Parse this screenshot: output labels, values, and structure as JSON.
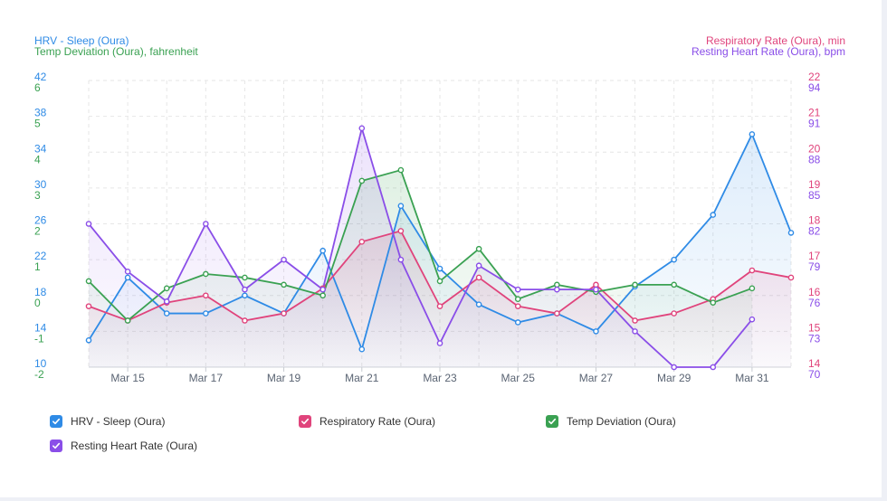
{
  "axes": {
    "left_titles": [
      {
        "text": "HRV - Sleep (Oura)",
        "color": "#2f8be6"
      },
      {
        "text": "Temp Deviation (Oura), fahrenheit",
        "color": "#3aa152"
      }
    ],
    "right_titles": [
      {
        "text": "Respiratory Rate (Oura), min",
        "color": "#e0447c"
      },
      {
        "text": "Resting Heart Rate (Oura), bpm",
        "color": "#8a4ee8"
      }
    ],
    "hrv_ticks": [
      "42",
      "38",
      "34",
      "30",
      "26",
      "22",
      "18",
      "14",
      "10"
    ],
    "temp_ticks": [
      "6",
      "5",
      "4",
      "3",
      "2",
      "1",
      "0",
      "-1",
      "-2"
    ],
    "resp_ticks": [
      "22",
      "21",
      "20",
      "19",
      "18",
      "17",
      "16",
      "15",
      "14"
    ],
    "rhr_ticks": [
      "94",
      "91",
      "88",
      "85",
      "82",
      "79",
      "76",
      "73",
      "70"
    ]
  },
  "chart_data": {
    "type": "line",
    "x": [
      "Mar 14",
      "Mar 15",
      "Mar 16",
      "Mar 17",
      "Mar 18",
      "Mar 19",
      "Mar 20",
      "Mar 21",
      "Mar 22",
      "Mar 23",
      "Mar 24",
      "Mar 25",
      "Mar 26",
      "Mar 27",
      "Mar 28",
      "Mar 29",
      "Mar 30",
      "Mar 31",
      "Apr 1"
    ],
    "x_tick_labels": [
      "Mar 15",
      "Mar 17",
      "Mar 19",
      "Mar 21",
      "Mar 23",
      "Mar 25",
      "Mar 27",
      "Mar 29",
      "Mar 31"
    ],
    "grid": true,
    "legend_placement": "bottom",
    "series": [
      {
        "name": "HRV - Sleep (Oura)",
        "axis": "hrv",
        "color": "#2f8be6",
        "ylim": [
          10,
          42
        ],
        "fill": true,
        "values": [
          13,
          20,
          16,
          16,
          18,
          16,
          23,
          12,
          28,
          21,
          17,
          15,
          16,
          14,
          19,
          22,
          27,
          36,
          25
        ]
      },
      {
        "name": "Respiratory Rate (Oura)",
        "axis": "resp",
        "color": "#e0447c",
        "ylim": [
          14,
          22
        ],
        "fill": true,
        "values": [
          15.7,
          15.3,
          15.8,
          16.0,
          15.3,
          15.5,
          16.2,
          17.5,
          17.8,
          15.7,
          16.5,
          15.7,
          15.5,
          16.3,
          15.3,
          15.5,
          15.9,
          16.7,
          16.5
        ]
      },
      {
        "name": "Temp Deviation (Oura)",
        "axis": "temp",
        "color": "#3aa152",
        "ylim": [
          -2,
          6
        ],
        "fill": true,
        "values": [
          0.4,
          -0.7,
          0.2,
          0.6,
          0.5,
          0.3,
          0.0,
          3.2,
          3.5,
          0.4,
          1.3,
          -0.1,
          0.3,
          0.1,
          0.3,
          0.3,
          -0.2,
          0.2,
          null
        ]
      },
      {
        "name": "Resting Heart Rate (Oura)",
        "axis": "rhr",
        "color": "#8a4ee8",
        "ylim": [
          70,
          94
        ],
        "fill": true,
        "values": [
          82,
          78,
          75.5,
          82,
          76.5,
          79,
          76.5,
          90,
          79,
          72,
          78.5,
          76.5,
          76.5,
          76.5,
          73,
          70,
          70,
          74,
          null
        ]
      }
    ]
  },
  "legend": [
    {
      "label": "HRV - Sleep (Oura)",
      "color": "#2f8be6"
    },
    {
      "label": "Respiratory Rate (Oura)",
      "color": "#e0447c"
    },
    {
      "label": "Temp Deviation (Oura)",
      "color": "#3aa152"
    },
    {
      "label": "Resting Heart Rate (Oura)",
      "color": "#8a4ee8"
    }
  ],
  "colors": {
    "grid": "#e6e6e6",
    "tick_text": "#5a6473"
  }
}
